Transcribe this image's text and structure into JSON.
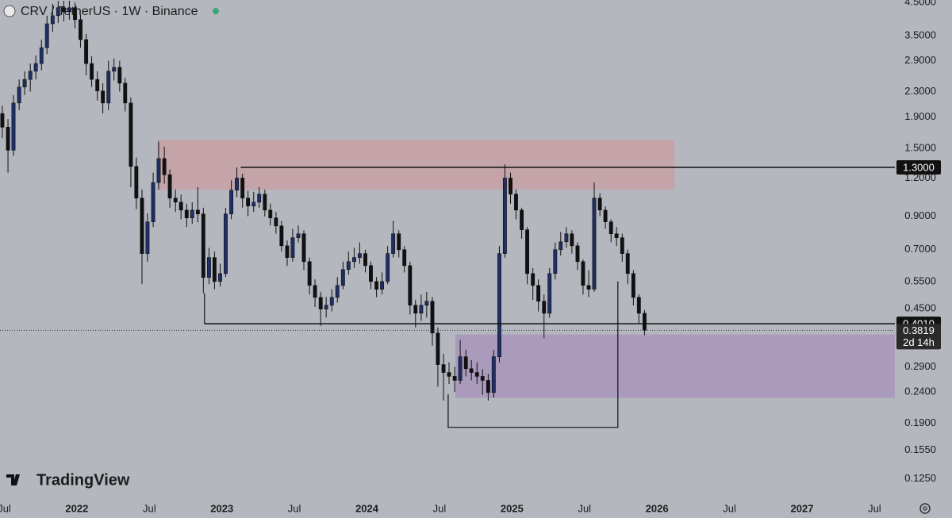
{
  "chart_data": {
    "type": "candlestick",
    "title": "CRV / TetherUS · 1W · Binance",
    "watermark": "TradingView",
    "log_scale": true,
    "grid": false,
    "up_color": "#1f2f66",
    "down_color": "#111111",
    "xlim": [
      2021.47,
      2027.64
    ],
    "ylim": [
      0.108,
      4.58
    ],
    "xticks": [
      {
        "value": 2021.5,
        "label": "Jul"
      },
      2022,
      {
        "value": 2022.5,
        "label": "Jul"
      },
      2023,
      {
        "value": 2023.5,
        "label": "Jul"
      },
      2024,
      {
        "value": 2024.5,
        "label": "Jul"
      },
      2025,
      {
        "value": 2025.5,
        "label": "Jul"
      },
      2026,
      {
        "value": 2026.5,
        "label": "Jul"
      },
      2027,
      {
        "value": 2027.5,
        "label": "Jul"
      }
    ],
    "yticks": [
      {
        "value": 4.5,
        "label": "4.5000"
      },
      {
        "value": 3.5,
        "label": "3.5000"
      },
      {
        "value": 2.9,
        "label": "2.9000"
      },
      {
        "value": 2.3,
        "label": "2.3000"
      },
      {
        "value": 1.9,
        "label": "1.9000"
      },
      {
        "value": 1.5,
        "label": "1.5000"
      },
      {
        "value": 1.2,
        "label": "1.2000"
      },
      {
        "value": 0.9,
        "label": "0.9000"
      },
      {
        "value": 0.7,
        "label": "0.7000"
      },
      {
        "value": 0.55,
        "label": "0.5500"
      },
      {
        "value": 0.45,
        "label": "0.4500"
      },
      {
        "value": 0.29,
        "label": "0.2900"
      },
      {
        "value": 0.24,
        "label": "0.2400"
      },
      {
        "value": 0.19,
        "label": "0.1900"
      },
      {
        "value": 0.155,
        "label": "0.1550"
      },
      {
        "value": 0.125,
        "label": "0.1250"
      }
    ],
    "x": [
      2021.486,
      2021.525,
      2021.563,
      2021.602,
      2021.64,
      2021.679,
      2021.717,
      2021.756,
      2021.794,
      2021.833,
      2021.871,
      2021.91,
      2021.948,
      2021.987,
      2022.025,
      2022.064,
      2022.102,
      2022.141,
      2022.179,
      2022.218,
      2022.256,
      2022.295,
      2022.333,
      2022.372,
      2022.41,
      2022.449,
      2022.487,
      2022.526,
      2022.564,
      2022.603,
      2022.641,
      2022.68,
      2022.718,
      2022.757,
      2022.795,
      2022.834,
      2022.872,
      2022.911,
      2022.949,
      2022.988,
      2023.026,
      2023.065,
      2023.103,
      2023.142,
      2023.18,
      2023.219,
      2023.257,
      2023.296,
      2023.334,
      2023.373,
      2023.411,
      2023.45,
      2023.488,
      2023.527,
      2023.565,
      2023.604,
      2023.642,
      2023.681,
      2023.719,
      2023.758,
      2023.796,
      2023.835,
      2023.873,
      2023.912,
      2023.95,
      2023.989,
      2024.027,
      2024.066,
      2024.104,
      2024.143,
      2024.181,
      2024.22,
      2024.258,
      2024.297,
      2024.335,
      2024.374,
      2024.412,
      2024.451,
      2024.489,
      2024.528,
      2024.566,
      2024.605,
      2024.643,
      2024.682,
      2024.72,
      2024.759,
      2024.797,
      2024.836,
      2024.874,
      2024.913,
      2024.951,
      2024.99,
      2025.028,
      2025.067,
      2025.105,
      2025.144,
      2025.182,
      2025.221,
      2025.259,
      2025.298,
      2025.336,
      2025.375,
      2025.413,
      2025.452,
      2025.49,
      2025.529,
      2025.567,
      2025.606,
      2025.644,
      2025.683,
      2025.721,
      2025.76,
      2025.798,
      2025.837,
      2025.875,
      2025.914
    ],
    "open": [
      1.95,
      1.76,
      1.48,
      2.11,
      2.38,
      2.52,
      2.68,
      2.84,
      3.2,
      3.83,
      4.07,
      4.32,
      4.19,
      4.32,
      3.95,
      3.4,
      2.84,
      2.52,
      2.31,
      2.11,
      2.68,
      2.76,
      2.45,
      2.11,
      1.31,
      1.032,
      0.68,
      0.863,
      1.16,
      1.39,
      1.23,
      1.032,
      1.001,
      0.943,
      0.889,
      0.943,
      0.916,
      0.568,
      0.66,
      0.551,
      0.585,
      0.916,
      1.095,
      1.2,
      1.032,
      0.972,
      1.001,
      1.063,
      0.943,
      0.889,
      0.837,
      0.721,
      0.66,
      0.766,
      0.789,
      0.64,
      0.535,
      0.489,
      0.448,
      0.461,
      0.489,
      0.535,
      0.603,
      0.64,
      0.66,
      0.68,
      0.621,
      0.551,
      0.52,
      0.551,
      0.68,
      0.789,
      0.7,
      0.621,
      0.461,
      0.434,
      0.461,
      0.475,
      0.374,
      0.295,
      0.278,
      0.27,
      0.262,
      0.313,
      0.286,
      0.278,
      0.27,
      0.262,
      0.239,
      0.313,
      0.68,
      1.2,
      1.063,
      0.943,
      0.813,
      0.585,
      0.535,
      0.475,
      0.434,
      0.585,
      0.7,
      0.743,
      0.789,
      0.721,
      0.64,
      0.535,
      0.52,
      1.032,
      0.943,
      0.863,
      0.789,
      0.766,
      0.68,
      0.585,
      0.489,
      0.434
    ],
    "high": [
      2.07,
      1.87,
      2.24,
      2.52,
      2.68,
      2.84,
      3.02,
      3.4,
      4.07,
      4.45,
      4.55,
      4.55,
      4.55,
      4.5,
      4.1,
      3.55,
      3.0,
      2.68,
      2.45,
      2.9,
      2.95,
      2.9,
      2.55,
      2.2,
      1.4,
      1.1,
      0.92,
      1.25,
      1.58,
      1.52,
      1.28,
      1.1,
      1.06,
      0.99,
      1.0,
      1.12,
      0.96,
      0.71,
      0.69,
      0.63,
      0.96,
      1.18,
      1.3,
      1.24,
      1.09,
      1.08,
      1.12,
      1.1,
      0.99,
      0.93,
      0.87,
      0.75,
      0.82,
      0.84,
      0.81,
      0.66,
      0.56,
      0.51,
      0.49,
      0.52,
      0.57,
      0.64,
      0.69,
      0.71,
      0.74,
      0.7,
      0.64,
      0.57,
      0.59,
      0.72,
      0.87,
      0.81,
      0.72,
      0.64,
      0.48,
      0.5,
      0.51,
      0.49,
      0.39,
      0.32,
      0.3,
      0.29,
      0.355,
      0.33,
      0.305,
      0.3,
      0.285,
      0.275,
      0.33,
      0.72,
      1.33,
      1.25,
      1.1,
      0.96,
      0.83,
      0.61,
      0.56,
      0.5,
      0.61,
      0.74,
      0.8,
      0.83,
      0.81,
      0.74,
      0.65,
      0.6,
      1.16,
      1.07,
      0.97,
      0.88,
      0.83,
      0.79,
      0.7,
      0.6,
      0.5,
      0.445
    ],
    "low": [
      1.62,
      1.25,
      1.42,
      2.0,
      2.24,
      2.3,
      2.52,
      2.7,
      3.05,
      3.6,
      3.85,
      3.9,
      3.95,
      3.7,
      3.2,
      2.6,
      2.38,
      2.15,
      1.95,
      2.0,
      2.5,
      2.3,
      1.98,
      1.12,
      0.95,
      0.54,
      0.64,
      0.83,
      1.1,
      1.15,
      0.96,
      0.93,
      0.88,
      0.83,
      0.85,
      0.86,
      0.505,
      0.54,
      0.52,
      0.53,
      0.57,
      0.88,
      1.04,
      0.96,
      0.9,
      0.93,
      0.96,
      0.9,
      0.84,
      0.79,
      0.69,
      0.62,
      0.64,
      0.74,
      0.6,
      0.5,
      0.455,
      0.395,
      0.42,
      0.44,
      0.47,
      0.52,
      0.58,
      0.61,
      0.63,
      0.59,
      0.52,
      0.49,
      0.5,
      0.54,
      0.66,
      0.66,
      0.59,
      0.43,
      0.39,
      0.41,
      0.42,
      0.34,
      0.25,
      0.225,
      0.255,
      0.24,
      0.255,
      0.27,
      0.262,
      0.255,
      0.235,
      0.225,
      0.23,
      0.3,
      0.66,
      0.99,
      0.88,
      0.76,
      0.54,
      0.48,
      0.44,
      0.36,
      0.42,
      0.56,
      0.67,
      0.71,
      0.68,
      0.6,
      0.5,
      0.49,
      0.51,
      0.9,
      0.82,
      0.74,
      0.72,
      0.64,
      0.54,
      0.46,
      0.4,
      0.368
    ],
    "close": [
      1.76,
      1.48,
      2.11,
      2.38,
      2.52,
      2.68,
      2.84,
      3.2,
      3.83,
      4.07,
      4.32,
      4.19,
      4.32,
      3.95,
      3.4,
      2.84,
      2.52,
      2.31,
      2.11,
      2.68,
      2.76,
      2.45,
      2.11,
      1.31,
      1.032,
      0.68,
      0.863,
      1.16,
      1.39,
      1.23,
      1.032,
      1.001,
      0.943,
      0.889,
      0.943,
      0.916,
      0.568,
      0.66,
      0.551,
      0.585,
      0.916,
      1.095,
      1.2,
      1.032,
      0.972,
      1.001,
      1.063,
      0.943,
      0.889,
      0.837,
      0.721,
      0.66,
      0.766,
      0.789,
      0.64,
      0.535,
      0.489,
      0.448,
      0.461,
      0.489,
      0.535,
      0.603,
      0.64,
      0.66,
      0.68,
      0.621,
      0.551,
      0.52,
      0.551,
      0.68,
      0.789,
      0.7,
      0.621,
      0.461,
      0.434,
      0.461,
      0.475,
      0.374,
      0.295,
      0.278,
      0.27,
      0.262,
      0.313,
      0.286,
      0.278,
      0.27,
      0.262,
      0.239,
      0.313,
      0.68,
      1.2,
      1.063,
      0.943,
      0.813,
      0.585,
      0.535,
      0.475,
      0.434,
      0.585,
      0.7,
      0.743,
      0.789,
      0.721,
      0.64,
      0.535,
      0.52,
      1.032,
      0.943,
      0.863,
      0.789,
      0.766,
      0.68,
      0.585,
      0.489,
      0.434,
      0.3819
    ],
    "zones": [
      {
        "x": [
          2022.553,
          2026.12
        ],
        "y": [
          1.1,
          1.6
        ],
        "color": "#c4a3a9"
      },
      {
        "x": [
          2024.61,
          2027.64
        ],
        "y": [
          0.23,
          0.37
        ],
        "color": "#aa9bbd"
      }
    ],
    "levels": [
      {
        "value": 1.3,
        "label": "1.3000",
        "start": 2023.13
      },
      {
        "value": 0.401,
        "label": "0.4010",
        "start": 2022.88,
        "from_price": 0.505
      }
    ],
    "box": {
      "x": [
        2024.56,
        2025.73
      ],
      "bottom": 0.184,
      "left_top": 0.236,
      "right_top": 0.551
    },
    "last_price": {
      "value": 0.3819,
      "label": "0.3819",
      "countdown": "2d 14h"
    }
  }
}
